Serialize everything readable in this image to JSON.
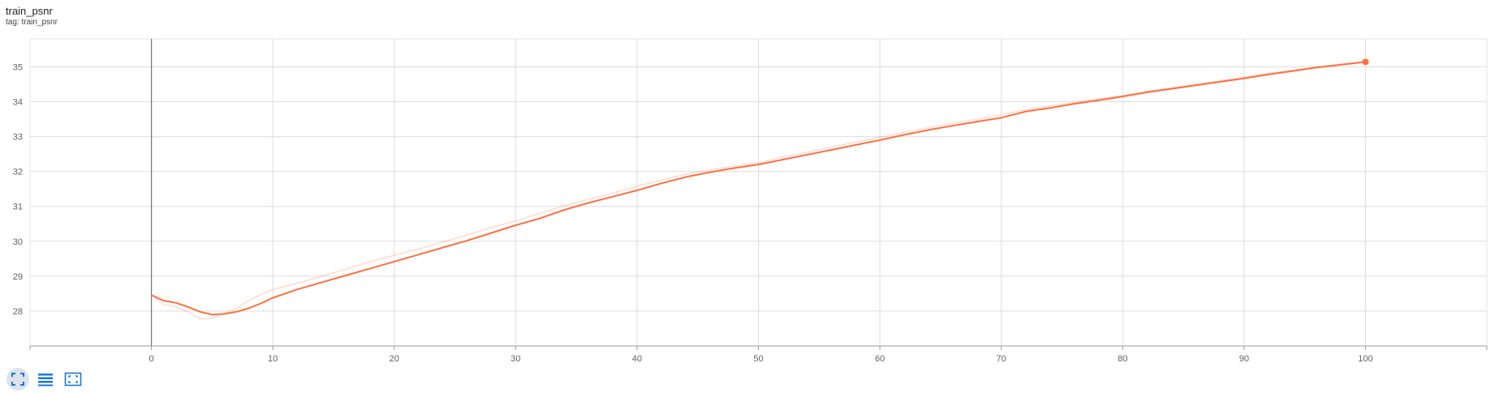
{
  "card": {
    "title": "train_psnr",
    "tag": "tag: train_psnr"
  },
  "toolbar": {
    "icons": [
      "fit-domain-icon",
      "toggle-log-icon",
      "zoom-region-icon"
    ],
    "active_color": "#dde3ea",
    "icon_color": "#1976d2"
  },
  "chart_data": {
    "type": "line",
    "title": "",
    "xlabel": "",
    "ylabel": "",
    "xlim": [
      -10,
      110
    ],
    "ylim": [
      27,
      35.8
    ],
    "xticks": [
      0,
      10,
      20,
      30,
      40,
      50,
      60,
      70,
      80,
      90,
      100
    ],
    "yticks": [
      28,
      29,
      30,
      31,
      32,
      33,
      34,
      35
    ],
    "grid": true,
    "series": [
      {
        "color": "#ff7043",
        "values_raw": [
          [
            0,
            28.46
          ],
          [
            1,
            28.2
          ],
          [
            2,
            28.12
          ],
          [
            3,
            27.98
          ],
          [
            4,
            27.78
          ],
          [
            5,
            27.8
          ],
          [
            6,
            27.93
          ],
          [
            7,
            28.08
          ],
          [
            8,
            28.3
          ],
          [
            9,
            28.47
          ],
          [
            10,
            28.62
          ],
          [
            12,
            28.8
          ],
          [
            14,
            29.0
          ],
          [
            16,
            29.2
          ],
          [
            18,
            29.42
          ],
          [
            20,
            29.6
          ],
          [
            22,
            29.78
          ],
          [
            24,
            29.98
          ],
          [
            26,
            30.18
          ],
          [
            28,
            30.4
          ],
          [
            30,
            30.58
          ],
          [
            32,
            30.8
          ],
          [
            34,
            31.02
          ],
          [
            36,
            31.2
          ],
          [
            38,
            31.38
          ],
          [
            40,
            31.58
          ],
          [
            42,
            31.75
          ],
          [
            44,
            31.92
          ],
          [
            46,
            32.05
          ],
          [
            48,
            32.16
          ],
          [
            50,
            32.25
          ],
          [
            52,
            32.42
          ],
          [
            54,
            32.55
          ],
          [
            56,
            32.7
          ],
          [
            58,
            32.84
          ],
          [
            60,
            32.98
          ],
          [
            62,
            33.12
          ],
          [
            64,
            33.26
          ],
          [
            66,
            33.38
          ],
          [
            68,
            33.5
          ],
          [
            70,
            33.62
          ],
          [
            72,
            33.78
          ],
          [
            74,
            33.88
          ],
          [
            76,
            33.98
          ],
          [
            78,
            34.08
          ],
          [
            80,
            34.18
          ],
          [
            82,
            34.3
          ],
          [
            84,
            34.4
          ],
          [
            86,
            34.5
          ],
          [
            88,
            34.6
          ],
          [
            90,
            34.7
          ],
          [
            92,
            34.82
          ],
          [
            94,
            34.9
          ],
          [
            96,
            35.0
          ],
          [
            98,
            35.08
          ],
          [
            100,
            35.14
          ]
        ],
        "values_smoothed": [
          [
            0,
            28.46
          ],
          [
            1,
            28.3
          ],
          [
            2,
            28.24
          ],
          [
            3,
            28.12
          ],
          [
            4,
            27.98
          ],
          [
            5,
            27.9
          ],
          [
            6,
            27.92
          ],
          [
            7,
            27.98
          ],
          [
            8,
            28.08
          ],
          [
            9,
            28.22
          ],
          [
            10,
            28.38
          ],
          [
            12,
            28.62
          ],
          [
            14,
            28.82
          ],
          [
            16,
            29.02
          ],
          [
            18,
            29.22
          ],
          [
            20,
            29.42
          ],
          [
            22,
            29.62
          ],
          [
            24,
            29.82
          ],
          [
            26,
            30.02
          ],
          [
            28,
            30.24
          ],
          [
            30,
            30.46
          ],
          [
            32,
            30.66
          ],
          [
            34,
            30.9
          ],
          [
            36,
            31.1
          ],
          [
            38,
            31.28
          ],
          [
            40,
            31.46
          ],
          [
            42,
            31.66
          ],
          [
            44,
            31.84
          ],
          [
            46,
            31.98
          ],
          [
            48,
            32.1
          ],
          [
            50,
            32.2
          ],
          [
            52,
            32.34
          ],
          [
            54,
            32.48
          ],
          [
            56,
            32.62
          ],
          [
            58,
            32.76
          ],
          [
            60,
            32.9
          ],
          [
            62,
            33.05
          ],
          [
            64,
            33.19
          ],
          [
            66,
            33.31
          ],
          [
            68,
            33.43
          ],
          [
            70,
            33.54
          ],
          [
            72,
            33.72
          ],
          [
            74,
            33.82
          ],
          [
            76,
            33.94
          ],
          [
            78,
            34.04
          ],
          [
            80,
            34.15
          ],
          [
            82,
            34.27
          ],
          [
            84,
            34.37
          ],
          [
            86,
            34.47
          ],
          [
            88,
            34.57
          ],
          [
            90,
            34.67
          ],
          [
            92,
            34.78
          ],
          [
            94,
            34.88
          ],
          [
            96,
            34.98
          ],
          [
            98,
            35.06
          ],
          [
            100,
            35.14
          ]
        ]
      }
    ]
  }
}
